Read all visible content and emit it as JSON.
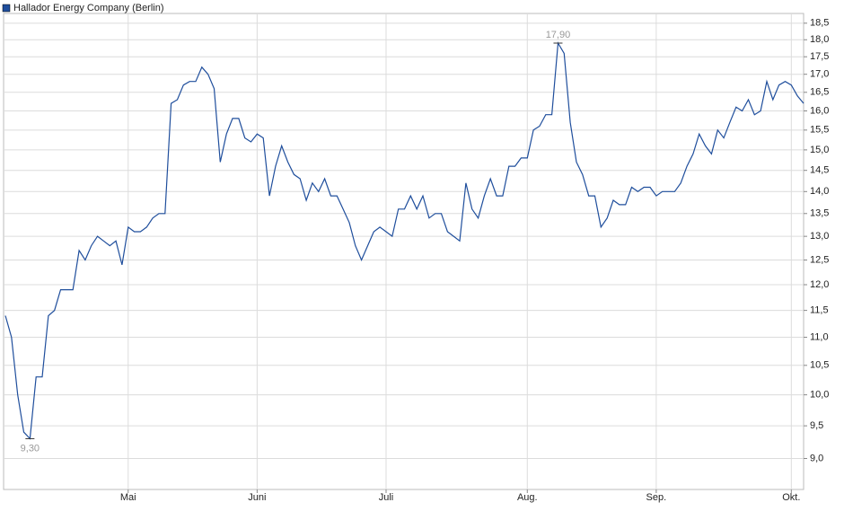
{
  "chart_data": {
    "type": "line",
    "categories": [
      null,
      null,
      null,
      null,
      null,
      null,
      null,
      null,
      null,
      null,
      null,
      null,
      null,
      null,
      null,
      null,
      null,
      null,
      null,
      null,
      "Mai",
      null,
      null,
      null,
      null,
      null,
      null,
      null,
      null,
      null,
      null,
      null,
      null,
      null,
      null,
      null,
      null,
      null,
      null,
      null,
      null,
      "Juni",
      null,
      null,
      null,
      null,
      null,
      null,
      null,
      null,
      null,
      null,
      null,
      null,
      null,
      null,
      null,
      null,
      null,
      null,
      null,
      null,
      "Juli",
      null,
      null,
      null,
      null,
      null,
      null,
      null,
      null,
      null,
      null,
      null,
      null,
      null,
      null,
      null,
      null,
      null,
      null,
      null,
      null,
      null,
      null,
      "Aug.",
      null,
      null,
      null,
      null,
      null,
      null,
      null,
      null,
      null,
      null,
      null,
      null,
      null,
      null,
      null,
      null,
      null,
      null,
      null,
      null,
      "Sep.",
      null,
      null,
      null,
      null,
      null,
      null,
      null,
      null,
      null,
      null,
      null,
      null,
      null,
      null,
      null,
      null,
      null,
      null,
      null,
      null,
      null,
      "Okt.",
      null,
      null
    ],
    "series": [
      {
        "name": "Hallador Energy Company (Berlin)",
        "color": "#1f4e9c",
        "values": [
          11.4,
          11.0,
          10.0,
          9.4,
          9.3,
          10.3,
          10.3,
          11.4,
          11.5,
          11.9,
          11.9,
          11.9,
          12.7,
          12.5,
          12.8,
          13.0,
          12.9,
          12.8,
          12.9,
          12.4,
          13.2,
          13.1,
          13.1,
          13.2,
          13.4,
          13.5,
          13.5,
          16.2,
          16.3,
          16.7,
          16.8,
          16.8,
          17.2,
          17.0,
          16.6,
          14.7,
          15.4,
          15.8,
          15.8,
          15.3,
          15.2,
          15.4,
          15.3,
          13.9,
          14.6,
          15.1,
          14.7,
          14.4,
          14.3,
          13.8,
          14.2,
          14.0,
          14.3,
          13.9,
          13.9,
          13.6,
          13.3,
          12.8,
          12.5,
          12.8,
          13.1,
          13.2,
          13.1,
          13.0,
          13.6,
          13.6,
          13.9,
          13.6,
          13.9,
          13.4,
          13.5,
          13.5,
          13.1,
          13.0,
          12.9,
          14.2,
          13.6,
          13.4,
          13.9,
          14.3,
          13.9,
          13.9,
          14.6,
          14.6,
          14.8,
          14.8,
          15.5,
          15.6,
          15.9,
          15.9,
          17.9,
          17.6,
          15.7,
          14.7,
          14.4,
          13.9,
          13.9,
          13.2,
          13.4,
          13.8,
          13.7,
          13.7,
          14.1,
          14.0,
          14.1,
          14.1,
          13.9,
          14.0,
          14.0,
          14.0,
          14.2,
          14.6,
          14.9,
          15.4,
          15.1,
          14.9,
          15.5,
          15.3,
          15.7,
          16.1,
          16.0,
          16.3,
          15.9,
          16.0,
          16.8,
          16.3,
          16.7,
          16.8,
          16.7,
          16.4,
          16.2
        ],
        "value_labels": [
          null,
          null,
          null,
          null,
          "9,30",
          null,
          null,
          null,
          null,
          null,
          null,
          null,
          null,
          null,
          null,
          null,
          null,
          null,
          null,
          null,
          null,
          null,
          null,
          null,
          null,
          null,
          null,
          null,
          null,
          null,
          null,
          null,
          null,
          null,
          null,
          null,
          null,
          null,
          null,
          null,
          null,
          null,
          null,
          null,
          null,
          null,
          null,
          null,
          null,
          null,
          null,
          null,
          null,
          null,
          null,
          null,
          null,
          null,
          null,
          null,
          null,
          null,
          null,
          null,
          null,
          null,
          null,
          null,
          null,
          null,
          null,
          null,
          null,
          null,
          null,
          null,
          null,
          null,
          null,
          null,
          null,
          null,
          null,
          null,
          null,
          null,
          null,
          null,
          null,
          null,
          "17,90",
          null,
          null,
          null,
          null,
          null,
          null,
          null,
          null,
          null,
          null,
          null,
          null,
          null,
          null,
          null,
          null,
          null,
          null,
          null,
          null,
          null,
          null,
          null,
          null,
          null,
          null,
          null,
          null,
          null,
          null,
          null,
          null,
          null,
          null,
          null,
          null,
          null,
          null,
          null,
          null
        ]
      }
    ],
    "ylim": [
      8.55,
      18.8
    ],
    "log_scale": true,
    "grid": true,
    "yticks": [
      {
        "value": 9.0,
        "label": "9,0"
      },
      {
        "value": 9.5,
        "label": "9,5"
      },
      {
        "value": 10.0,
        "label": "10,0"
      },
      {
        "value": 10.5,
        "label": "10,5"
      },
      {
        "value": 11.0,
        "label": "11,0"
      },
      {
        "value": 11.5,
        "label": "11,5"
      },
      {
        "value": 12.0,
        "label": "12,0"
      },
      {
        "value": 12.5,
        "label": "12,5"
      },
      {
        "value": 13.0,
        "label": "13,0"
      },
      {
        "value": 13.5,
        "label": "13,5"
      },
      {
        "value": 14.0,
        "label": "14,0"
      },
      {
        "value": 14.5,
        "label": "14,5"
      },
      {
        "value": 15.0,
        "label": "15,0"
      },
      {
        "value": 15.5,
        "label": "15,5"
      },
      {
        "value": 16.0,
        "label": "16,0"
      },
      {
        "value": 16.5,
        "label": "16,5"
      },
      {
        "value": 17.0,
        "label": "17,0"
      },
      {
        "value": 17.5,
        "label": "17,5"
      },
      {
        "value": 18.0,
        "label": "18,0"
      },
      {
        "value": 18.5,
        "label": "18,5"
      }
    ],
    "legend": "top-left"
  }
}
